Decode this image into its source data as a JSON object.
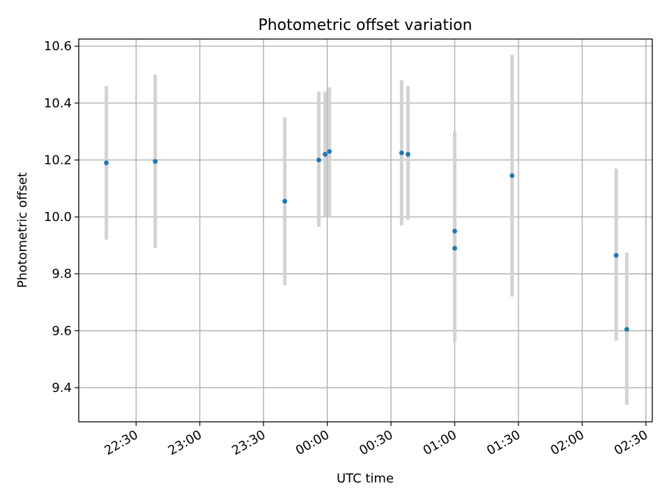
{
  "chart_data": {
    "type": "scatter",
    "title": "Photometric offset variation",
    "xlabel": "UTC time",
    "ylabel": "Photometric offset",
    "grid": true,
    "xlim": [
      "22:03",
      "02:33"
    ],
    "ylim": [
      9.28,
      10.625
    ],
    "x_ticks": [
      "22:30",
      "23:00",
      "23:30",
      "00:00",
      "00:30",
      "01:00",
      "01:30",
      "02:00",
      "02:30"
    ],
    "y_ticks": [
      "9.4",
      "9.6",
      "9.8",
      "10.0",
      "10.2",
      "10.4",
      "10.6"
    ],
    "points": [
      {
        "x": "22:16",
        "y": 10.19,
        "y_low": 9.92,
        "y_high": 10.46
      },
      {
        "x": "22:39",
        "y": 10.195,
        "y_low": 9.89,
        "y_high": 10.5
      },
      {
        "x": "23:40",
        "y": 10.055,
        "y_low": 9.76,
        "y_high": 10.35
      },
      {
        "x": "23:56",
        "y": 10.2,
        "y_low": 9.965,
        "y_high": 10.44
      },
      {
        "x": "23:59",
        "y": 10.22,
        "y_low": 10.0,
        "y_high": 10.44
      },
      {
        "x": "00:01",
        "y": 10.23,
        "y_low": 10.0,
        "y_high": 10.455
      },
      {
        "x": "00:35",
        "y": 10.225,
        "y_low": 9.97,
        "y_high": 10.48
      },
      {
        "x": "00:38",
        "y": 10.22,
        "y_low": 9.99,
        "y_high": 10.46
      },
      {
        "x": "01:00",
        "y": 9.95,
        "y_low": 9.6,
        "y_high": 10.3
      },
      {
        "x": "01:00",
        "y": 9.89,
        "y_low": 9.56,
        "y_high": 10.22
      },
      {
        "x": "01:27",
        "y": 10.145,
        "y_low": 9.72,
        "y_high": 10.57
      },
      {
        "x": "02:16",
        "y": 9.865,
        "y_low": 9.565,
        "y_high": 10.17
      },
      {
        "x": "02:21",
        "y": 9.605,
        "y_low": 9.34,
        "y_high": 9.875
      }
    ],
    "marker_color": "#1f77b4",
    "errorbar_color": "#d3d3d3",
    "grid_color": "#b0b0b0"
  }
}
